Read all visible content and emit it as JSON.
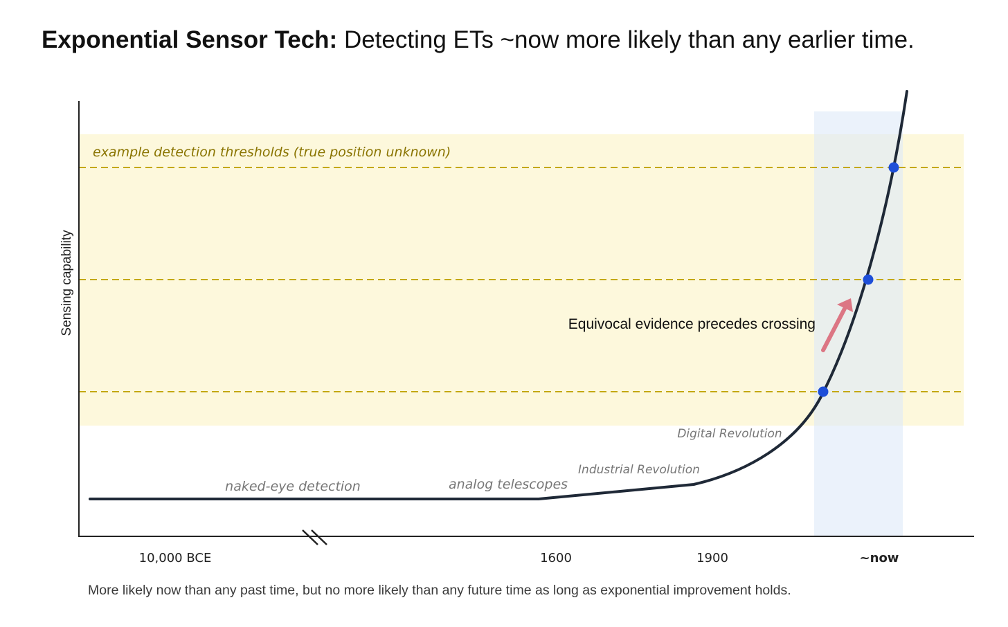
{
  "title_bold": "Exponential Sensor Tech:",
  "title_rest": " Detecting ETs ~now more likely than any earlier time.",
  "caption": "More likely now than any past time, but no more likely than any future time as long as exponential improvement holds.",
  "colors": {
    "curve": "#1f2937",
    "threshold_band": "#fdf8dc",
    "threshold_line": "#c4a80f",
    "threshold_label": "#8a7400",
    "now_band": "#dde9f9",
    "crossing_point": "#1d4ed8",
    "arrow": "#dc7684",
    "era_label": "#777777",
    "axis": "#222222"
  },
  "chart_data": {
    "type": "line",
    "ylabel": "Sensing capability",
    "x_ticks": [
      "10,000 BCE",
      "1600",
      "1900",
      "~now"
    ],
    "axis_break": true,
    "threshold_note": "example detection thresholds (true position unknown)",
    "threshold_count": 3,
    "era_labels": [
      "naked-eye detection",
      "analog telescopes",
      "Industrial Revolution",
      "Digital Revolution"
    ],
    "annotation": "Equivocal evidence precedes crossing",
    "highlight": "~now",
    "curve_shape": "flat until 1600, slow rise to 1900, exponential growth after"
  }
}
